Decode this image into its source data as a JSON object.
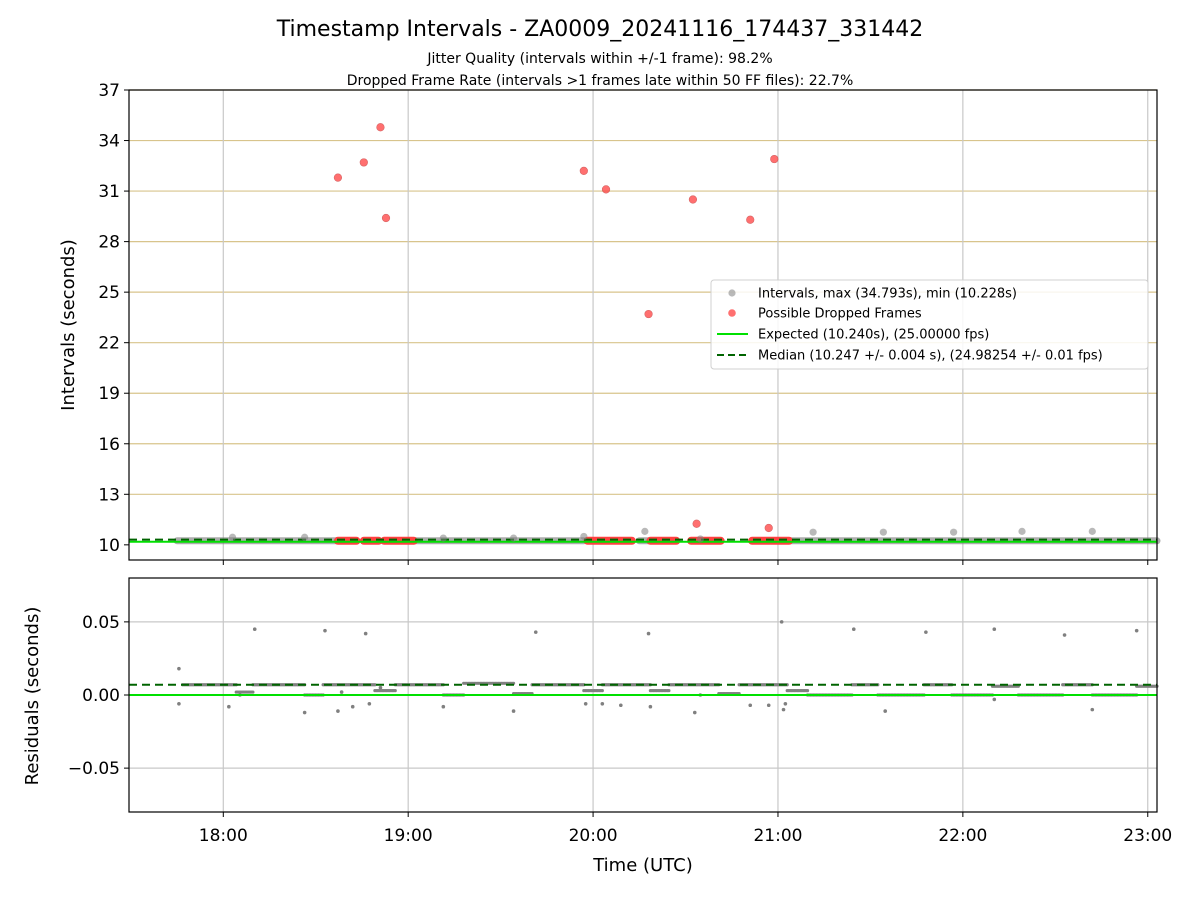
{
  "chart_data": {
    "title": "Timestamp Intervals - ZA0009_20241116_174437_331442",
    "subtitle_1": "Jitter Quality (intervals within +/-1 frame): 98.2%",
    "subtitle_2": "Dropped Frame Rate (intervals >1 frames late within 50 FF files): 22.7%",
    "xlabel": "Time (UTC)",
    "x_tick_labels": [
      "18:00",
      "19:00",
      "20:00",
      "21:00",
      "22:00",
      "23:00"
    ],
    "xlim_hours": [
      17.49,
      23.05
    ],
    "top_panel": {
      "type": "scatter",
      "ylabel": "Intervals (seconds)",
      "ylim": [
        9.1,
        37.0
      ],
      "y_ticks": [
        10,
        13,
        16,
        19,
        22,
        25,
        28,
        31,
        34,
        37
      ],
      "grid": "horizontal golden lines, vertical grey lines",
      "legend_position": "center-right",
      "legend": [
        "Intervals, max (34.793s), min (10.228s)",
        "Possible Dropped Frames",
        "Expected (10.240s), (25.00000 fps)",
        "Median (10.247 +/- 0.004 s), (24.98254 +/- 0.01 fps)"
      ],
      "expected_interval": 10.24,
      "median_interval": 10.247,
      "intervals_gray_bands_hours": [
        [
          17.75,
          18.62
        ],
        [
          18.95,
          19.95
        ],
        [
          20.25,
          20.32
        ],
        [
          21.05,
          23.05
        ]
      ],
      "intervals_gray_spikes": [
        {
          "x": 18.05,
          "y": 10.45
        },
        {
          "x": 18.44,
          "y": 10.45
        },
        {
          "x": 19.19,
          "y": 10.4
        },
        {
          "x": 19.57,
          "y": 10.4
        },
        {
          "x": 19.95,
          "y": 10.5
        },
        {
          "x": 20.28,
          "y": 10.8
        },
        {
          "x": 20.58,
          "y": 10.35
        },
        {
          "x": 21.19,
          "y": 10.75
        },
        {
          "x": 21.57,
          "y": 10.75
        },
        {
          "x": 21.95,
          "y": 10.75
        },
        {
          "x": 22.32,
          "y": 10.8
        },
        {
          "x": 22.7,
          "y": 10.8
        }
      ],
      "dropped_red_bands_hours": [
        [
          18.62,
          18.72
        ],
        [
          18.76,
          18.84
        ],
        [
          18.87,
          19.03
        ],
        [
          19.97,
          20.21
        ],
        [
          20.31,
          20.45
        ],
        [
          20.53,
          20.69
        ],
        [
          20.86,
          21.06
        ]
      ],
      "dropped_red_points": [
        {
          "x": 18.62,
          "y": 31.8
        },
        {
          "x": 18.76,
          "y": 32.7
        },
        {
          "x": 18.85,
          "y": 34.79
        },
        {
          "x": 18.88,
          "y": 29.4
        },
        {
          "x": 19.95,
          "y": 32.2
        },
        {
          "x": 20.07,
          "y": 31.1
        },
        {
          "x": 20.3,
          "y": 23.7
        },
        {
          "x": 20.54,
          "y": 30.5
        },
        {
          "x": 20.56,
          "y": 11.25
        },
        {
          "x": 20.85,
          "y": 29.3
        },
        {
          "x": 20.95,
          "y": 11.0
        },
        {
          "x": 20.98,
          "y": 32.9
        }
      ]
    },
    "bottom_panel": {
      "type": "scatter",
      "ylabel": "Residuals (seconds)",
      "ylim": [
        -0.08,
        0.08
      ],
      "y_ticks": [
        0.05,
        0.0,
        -0.05
      ],
      "y_tick_labels": [
        "0.05",
        "0.00",
        "−0.05"
      ],
      "expected_residual": 0.0,
      "median_residual": 0.007,
      "residual_segments": [
        {
          "x0": 17.78,
          "x1": 18.07,
          "y": 0.007
        },
        {
          "x0": 18.07,
          "x1": 18.16,
          "y": 0.002
        },
        {
          "x0": 18.16,
          "x1": 18.44,
          "y": 0.007
        },
        {
          "x0": 18.44,
          "x1": 18.54,
          "y": 0.0
        },
        {
          "x0": 18.54,
          "x1": 18.82,
          "y": 0.007
        },
        {
          "x0": 18.82,
          "x1": 18.93,
          "y": 0.003
        },
        {
          "x0": 18.93,
          "x1": 19.19,
          "y": 0.007
        },
        {
          "x0": 19.19,
          "x1": 19.3,
          "y": 0.0
        },
        {
          "x0": 19.3,
          "x1": 19.57,
          "y": 0.008
        },
        {
          "x0": 19.57,
          "x1": 19.67,
          "y": 0.001
        },
        {
          "x0": 19.67,
          "x1": 19.95,
          "y": 0.007
        },
        {
          "x0": 19.95,
          "x1": 20.05,
          "y": 0.003
        },
        {
          "x0": 20.05,
          "x1": 20.31,
          "y": 0.007
        },
        {
          "x0": 20.31,
          "x1": 20.41,
          "y": 0.003
        },
        {
          "x0": 20.41,
          "x1": 20.68,
          "y": 0.007
        },
        {
          "x0": 20.68,
          "x1": 20.79,
          "y": 0.001
        },
        {
          "x0": 20.79,
          "x1": 21.05,
          "y": 0.007
        },
        {
          "x0": 21.05,
          "x1": 21.16,
          "y": 0.003
        },
        {
          "x0": 21.16,
          "x1": 21.4,
          "y": 0.0
        },
        {
          "x0": 21.4,
          "x1": 21.54,
          "y": 0.007
        },
        {
          "x0": 21.54,
          "x1": 21.79,
          "y": 0.0
        },
        {
          "x0": 21.79,
          "x1": 21.94,
          "y": 0.007
        },
        {
          "x0": 21.94,
          "x1": 22.16,
          "y": 0.0
        },
        {
          "x0": 22.16,
          "x1": 22.3,
          "y": 0.006
        },
        {
          "x0": 22.3,
          "x1": 22.54,
          "y": 0.0
        },
        {
          "x0": 22.54,
          "x1": 22.7,
          "y": 0.007
        },
        {
          "x0": 22.7,
          "x1": 22.94,
          "y": 0.0
        },
        {
          "x0": 22.94,
          "x1": 23.05,
          "y": 0.006
        }
      ],
      "residual_outliers": [
        {
          "x": 17.76,
          "y": 0.018
        },
        {
          "x": 17.76,
          "y": -0.006
        },
        {
          "x": 18.03,
          "y": -0.008
        },
        {
          "x": 18.09,
          "y": 0.0
        },
        {
          "x": 18.17,
          "y": 0.045
        },
        {
          "x": 18.44,
          "y": -0.012
        },
        {
          "x": 18.55,
          "y": 0.044
        },
        {
          "x": 18.62,
          "y": -0.011
        },
        {
          "x": 18.64,
          "y": 0.002
        },
        {
          "x": 18.7,
          "y": -0.008
        },
        {
          "x": 18.77,
          "y": 0.042
        },
        {
          "x": 18.79,
          "y": -0.006
        },
        {
          "x": 18.85,
          "y": 0.005
        },
        {
          "x": 19.19,
          "y": -0.008
        },
        {
          "x": 19.57,
          "y": -0.011
        },
        {
          "x": 19.69,
          "y": 0.043
        },
        {
          "x": 19.96,
          "y": -0.006
        },
        {
          "x": 20.05,
          "y": -0.006
        },
        {
          "x": 20.15,
          "y": -0.007
        },
        {
          "x": 20.3,
          "y": 0.042
        },
        {
          "x": 20.31,
          "y": -0.008
        },
        {
          "x": 20.55,
          "y": -0.012
        },
        {
          "x": 20.58,
          "y": 0.0
        },
        {
          "x": 20.85,
          "y": -0.007
        },
        {
          "x": 20.95,
          "y": -0.007
        },
        {
          "x": 21.02,
          "y": 0.05
        },
        {
          "x": 21.03,
          "y": -0.01
        },
        {
          "x": 21.04,
          "y": -0.006
        },
        {
          "x": 21.41,
          "y": 0.045
        },
        {
          "x": 21.58,
          "y": -0.011
        },
        {
          "x": 21.8,
          "y": 0.043
        },
        {
          "x": 22.17,
          "y": 0.045
        },
        {
          "x": 22.17,
          "y": -0.003
        },
        {
          "x": 22.55,
          "y": 0.041
        },
        {
          "x": 22.7,
          "y": -0.01
        },
        {
          "x": 22.94,
          "y": 0.044
        }
      ]
    },
    "colors": {
      "interval_gray": "#808080",
      "dropped_red": "#ff4040",
      "expected_green": "#00e000",
      "median_green": "#006400",
      "h_grid_gold": "#d8c48c",
      "v_grid": "#c8c8c8"
    }
  }
}
